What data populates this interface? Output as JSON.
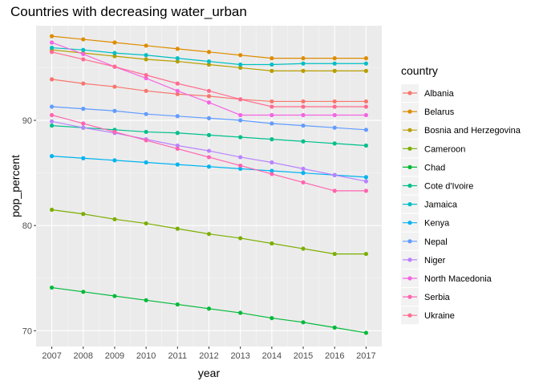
{
  "chart_data": {
    "type": "line",
    "title": "Countries with decreasing water_urban",
    "xlabel": "year",
    "ylabel": "pop_percent",
    "x": [
      2007,
      2008,
      2009,
      2010,
      2011,
      2012,
      2013,
      2014,
      2015,
      2016,
      2017
    ],
    "xlim": [
      2006.5,
      2017.5
    ],
    "ylim": [
      68.5,
      99.0
    ],
    "yticks": [
      70,
      80,
      90
    ],
    "grid": true,
    "legend_title": "country",
    "legend_position": "right",
    "series": [
      {
        "name": "Albania",
        "color": "#F8766D",
        "values": [
          93.9,
          93.5,
          93.2,
          92.8,
          92.5,
          92.3,
          92.0,
          91.8,
          91.8,
          91.8,
          91.8
        ]
      },
      {
        "name": "Belarus",
        "color": "#DE8C00",
        "values": [
          98.0,
          97.7,
          97.4,
          97.1,
          96.8,
          96.5,
          96.2,
          95.9,
          95.9,
          95.9,
          95.9
        ]
      },
      {
        "name": "Bosnia and Herzegovina",
        "color": "#B79F00",
        "values": [
          96.7,
          96.4,
          96.1,
          95.8,
          95.6,
          95.3,
          95.0,
          94.7,
          94.7,
          94.7,
          94.7
        ]
      },
      {
        "name": "Cameroon",
        "color": "#7CAE00",
        "values": [
          81.5,
          81.1,
          80.6,
          80.2,
          79.7,
          79.2,
          78.8,
          78.3,
          77.8,
          77.3,
          77.3
        ]
      },
      {
        "name": "Chad",
        "color": "#00BA38",
        "values": [
          74.1,
          73.7,
          73.3,
          72.9,
          72.5,
          72.1,
          71.7,
          71.2,
          70.8,
          70.3,
          69.8
        ]
      },
      {
        "name": "Cote d'Ivoire",
        "color": "#00C08B",
        "values": [
          89.5,
          89.3,
          89.1,
          88.9,
          88.8,
          88.6,
          88.4,
          88.2,
          88.0,
          87.8,
          87.6
        ]
      },
      {
        "name": "Jamaica",
        "color": "#00BFC4",
        "values": [
          96.9,
          96.7,
          96.4,
          96.2,
          95.9,
          95.6,
          95.3,
          95.3,
          95.4,
          95.4,
          95.4
        ]
      },
      {
        "name": "Kenya",
        "color": "#00B4F0",
        "values": [
          86.6,
          86.4,
          86.2,
          86.0,
          85.8,
          85.6,
          85.4,
          85.2,
          85.0,
          84.8,
          84.6
        ]
      },
      {
        "name": "Nepal",
        "color": "#619CFF",
        "values": [
          91.3,
          91.1,
          90.9,
          90.6,
          90.4,
          90.2,
          90.0,
          89.7,
          89.5,
          89.3,
          89.1
        ]
      },
      {
        "name": "Niger",
        "color": "#B983FF",
        "values": [
          89.9,
          89.3,
          88.8,
          88.2,
          87.6,
          87.1,
          86.5,
          86.0,
          85.4,
          84.8,
          84.2
        ]
      },
      {
        "name": "North Macedonia",
        "color": "#F564E3",
        "values": [
          97.4,
          96.3,
          95.1,
          94.0,
          92.8,
          91.7,
          90.5,
          90.5,
          90.5,
          90.5,
          90.5
        ]
      },
      {
        "name": "Serbia",
        "color": "#FF64B0",
        "values": [
          90.5,
          89.7,
          88.9,
          88.1,
          87.3,
          86.5,
          85.7,
          84.9,
          84.1,
          83.3,
          83.3
        ]
      },
      {
        "name": "Ukraine",
        "color": "#FF6C91",
        "values": [
          96.5,
          95.8,
          95.1,
          94.3,
          93.5,
          92.8,
          92.0,
          91.3,
          91.3,
          91.3,
          91.3
        ]
      }
    ]
  }
}
